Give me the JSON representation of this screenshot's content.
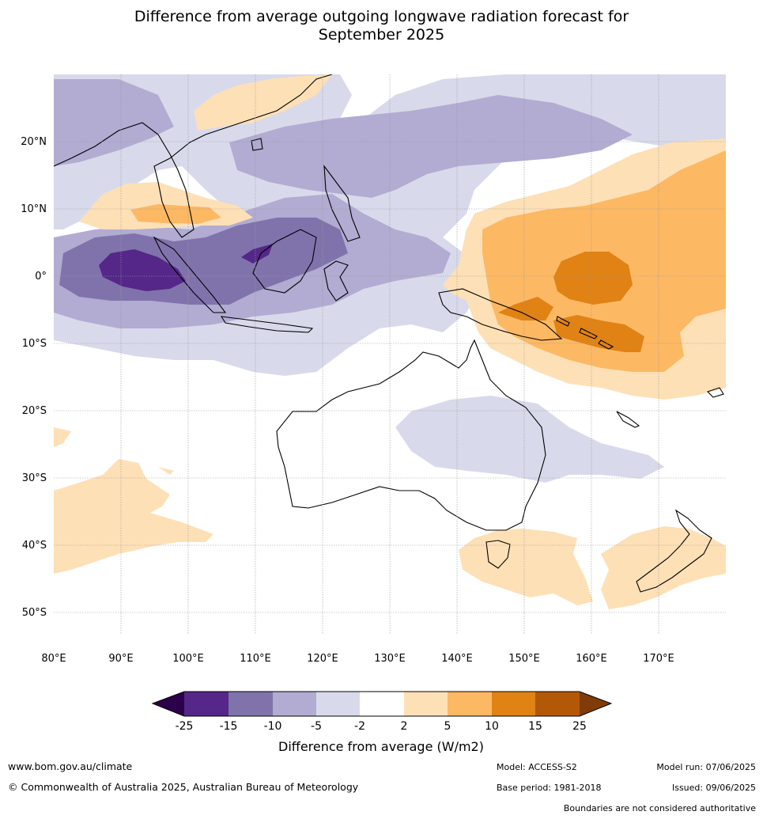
{
  "title_line1": "Difference from average outgoing longwave radiation forecast for",
  "title_line2": "September 2025",
  "map": {
    "lon_ticks": [
      "80°E",
      "90°E",
      "100°E",
      "110°E",
      "120°E",
      "130°E",
      "140°E",
      "150°E",
      "160°E",
      "170°E"
    ],
    "lat_ticks": [
      "20°N",
      "10°N",
      "0°",
      "10°S",
      "20°S",
      "30°S",
      "40°S",
      "50°S"
    ],
    "extent": {
      "lon_min": 80,
      "lon_max": 180,
      "lat_min": -55,
      "lat_max": 30
    }
  },
  "colorbar": {
    "label": "Difference from average (W/m2)",
    "ticks": [
      "-25",
      "-15",
      "-10",
      "-5",
      "-2",
      "2",
      "5",
      "10",
      "15",
      "25"
    ],
    "colors": {
      "below_min": "#2d004b",
      "c1": "#542788",
      "c2": "#8073ac",
      "c3": "#b2abd2",
      "c4": "#d8daeb",
      "c5": "#ffffff",
      "c6": "#fee0b6",
      "c7": "#fdb863",
      "c8": "#e08214",
      "c9": "#b35806",
      "above_max": "#7f3b08"
    }
  },
  "footer": {
    "url": "www.bom.gov.au/climate",
    "copyright": "© Commonwealth of Australia 2025, Australian Bureau of Meteorology",
    "model": "Model: ACCESS-S2",
    "base_period": "Base period: 1981-2018",
    "model_run": "Model run: 07/06/2025",
    "issued": "Issued: 09/06/2025",
    "disclaimer": "Boundaries are not considered authoritative"
  }
}
